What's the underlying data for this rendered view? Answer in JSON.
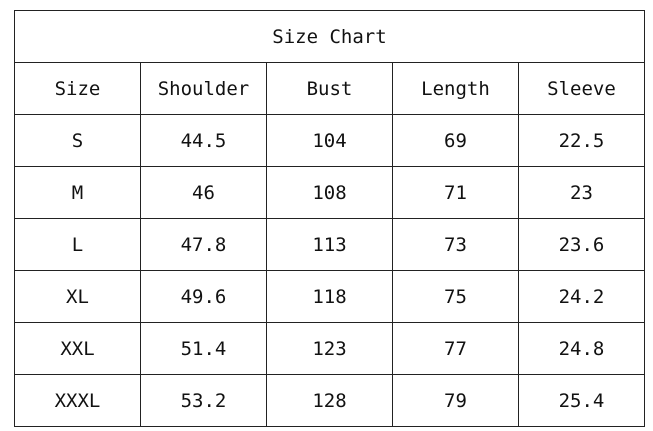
{
  "title": "Size Chart",
  "headers": [
    "Size",
    "Shoulder",
    "Bust",
    "Length",
    "Sleeve"
  ],
  "rows": [
    [
      "S",
      "44.5",
      "104",
      "69",
      "22.5"
    ],
    [
      "M",
      "46",
      "108",
      "71",
      "23"
    ],
    [
      "L",
      "47.8",
      "113",
      "73",
      "23.6"
    ],
    [
      "XL",
      "49.6",
      "118",
      "75",
      "24.2"
    ],
    [
      "XXL",
      "51.4",
      "123",
      "77",
      "24.8"
    ],
    [
      "XXXL",
      "53.2",
      "128",
      "79",
      "25.4"
    ]
  ]
}
